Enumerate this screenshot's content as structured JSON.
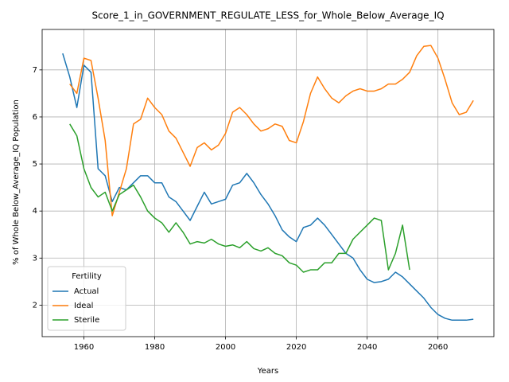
{
  "chart_data": {
    "type": "line",
    "title": "Score_1_in_GOVERNMENT_REGULATE_LESS_for_Whole_Below_Average_IQ",
    "xlabel": "Years",
    "ylabel": "% of Whole Below_Average_IQ Population",
    "x": [
      1954,
      1956,
      1958,
      1960,
      1962,
      1964,
      1966,
      1968,
      1970,
      1972,
      1974,
      1976,
      1978,
      1980,
      1982,
      1984,
      1986,
      1988,
      1990,
      1992,
      1994,
      1996,
      1998,
      2000,
      2002,
      2004,
      2006,
      2008,
      2010,
      2012,
      2014,
      2016,
      2018,
      2020,
      2022,
      2024,
      2026,
      2028,
      2030,
      2032,
      2034,
      2036,
      2038,
      2040,
      2042,
      2044,
      2046,
      2048,
      2050,
      2052,
      2054,
      2056,
      2058,
      2060,
      2062,
      2064,
      2066,
      2068,
      2070
    ],
    "series": [
      {
        "name": "Actual",
        "color": "#1f77b4",
        "values": [
          7.35,
          6.85,
          6.2,
          7.1,
          6.95,
          4.9,
          4.75,
          4.2,
          4.5,
          4.45,
          4.6,
          4.75,
          4.75,
          4.6,
          4.6,
          4.3,
          4.2,
          4.0,
          3.8,
          4.1,
          4.4,
          4.15,
          4.2,
          4.25,
          4.55,
          4.6,
          4.8,
          4.6,
          4.35,
          4.15,
          3.9,
          3.6,
          3.45,
          3.35,
          3.65,
          3.7,
          3.85,
          3.7,
          3.5,
          3.3,
          3.1,
          3.0,
          2.75,
          2.55,
          2.48,
          2.5,
          2.55,
          2.7,
          2.6,
          2.45,
          2.3,
          2.15,
          1.95,
          1.8,
          1.72,
          1.68,
          1.68,
          1.68,
          1.7
        ]
      },
      {
        "name": "Ideal",
        "color": "#ff7f0e",
        "values": [
          null,
          6.7,
          6.5,
          7.25,
          7.2,
          6.4,
          5.5,
          3.9,
          4.4,
          4.9,
          5.85,
          5.95,
          6.4,
          6.2,
          6.05,
          5.7,
          5.55,
          5.25,
          4.95,
          5.35,
          5.45,
          5.3,
          5.4,
          5.65,
          6.1,
          6.2,
          6.05,
          5.85,
          5.7,
          5.75,
          5.85,
          5.8,
          5.5,
          5.45,
          5.9,
          6.5,
          6.85,
          6.6,
          6.4,
          6.3,
          6.45,
          6.55,
          6.6,
          6.55,
          6.55,
          6.6,
          6.7,
          6.7,
          6.8,
          6.95,
          7.3,
          7.5,
          7.52,
          7.25,
          6.8,
          6.3,
          6.05,
          6.1,
          6.35
        ]
      },
      {
        "name": "Sterile",
        "color": "#2ca02c",
        "values": [
          null,
          5.85,
          5.6,
          4.9,
          4.5,
          4.3,
          4.4,
          4.0,
          4.35,
          4.45,
          4.55,
          4.3,
          4.0,
          3.85,
          3.75,
          3.55,
          3.75,
          3.55,
          3.3,
          3.35,
          3.32,
          3.4,
          3.3,
          3.25,
          3.28,
          3.22,
          3.35,
          3.2,
          3.15,
          3.22,
          3.1,
          3.05,
          2.9,
          2.85,
          2.7,
          2.75,
          2.75,
          2.9,
          2.9,
          3.1,
          3.1,
          3.4,
          3.55,
          3.7,
          3.85,
          3.8,
          2.75,
          3.1,
          3.7,
          2.75,
          null,
          null,
          null,
          null,
          null,
          null,
          null,
          null,
          null
        ]
      }
    ],
    "xlim": [
      1948.2,
      2075.8
    ],
    "xticks": [
      1960,
      1980,
      2000,
      2020,
      2040,
      2060
    ],
    "ylim": [
      1.33,
      7.86
    ],
    "yticks": [
      2,
      3,
      4,
      5,
      6,
      7
    ],
    "grid": true,
    "legend_title": "Fertility",
    "legend_position": "lower left"
  }
}
